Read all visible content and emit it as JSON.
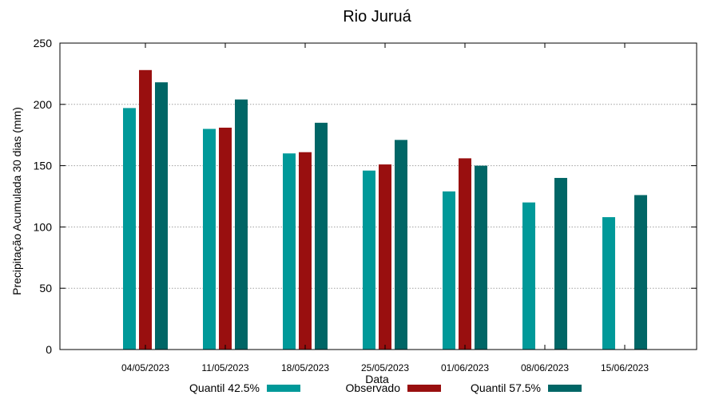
{
  "chart_data": {
    "type": "bar",
    "title": "Rio Juruá",
    "xlabel": "Data",
    "ylabel": "Precipitação Acumulada 30 dias (mm)",
    "ylim": [
      0,
      250
    ],
    "yticks": [
      0,
      50,
      100,
      150,
      200,
      250
    ],
    "grid": true,
    "legend_position": "bottom",
    "categories": [
      "04/05/2023",
      "11/05/2023",
      "18/05/2023",
      "25/05/2023",
      "01/06/2023",
      "08/06/2023",
      "15/06/2023"
    ],
    "series": [
      {
        "name": "Quantil 42.5%",
        "color": "#009999",
        "values": [
          197,
          180,
          160,
          146,
          129,
          120,
          108
        ]
      },
      {
        "name": "Observado",
        "color": "#990f0f",
        "values": [
          228,
          181,
          161,
          151,
          156,
          null,
          null
        ]
      },
      {
        "name": "Quantil 57.5%",
        "color": "#006666",
        "values": [
          218,
          204,
          185,
          171,
          150,
          140,
          126
        ]
      }
    ]
  }
}
